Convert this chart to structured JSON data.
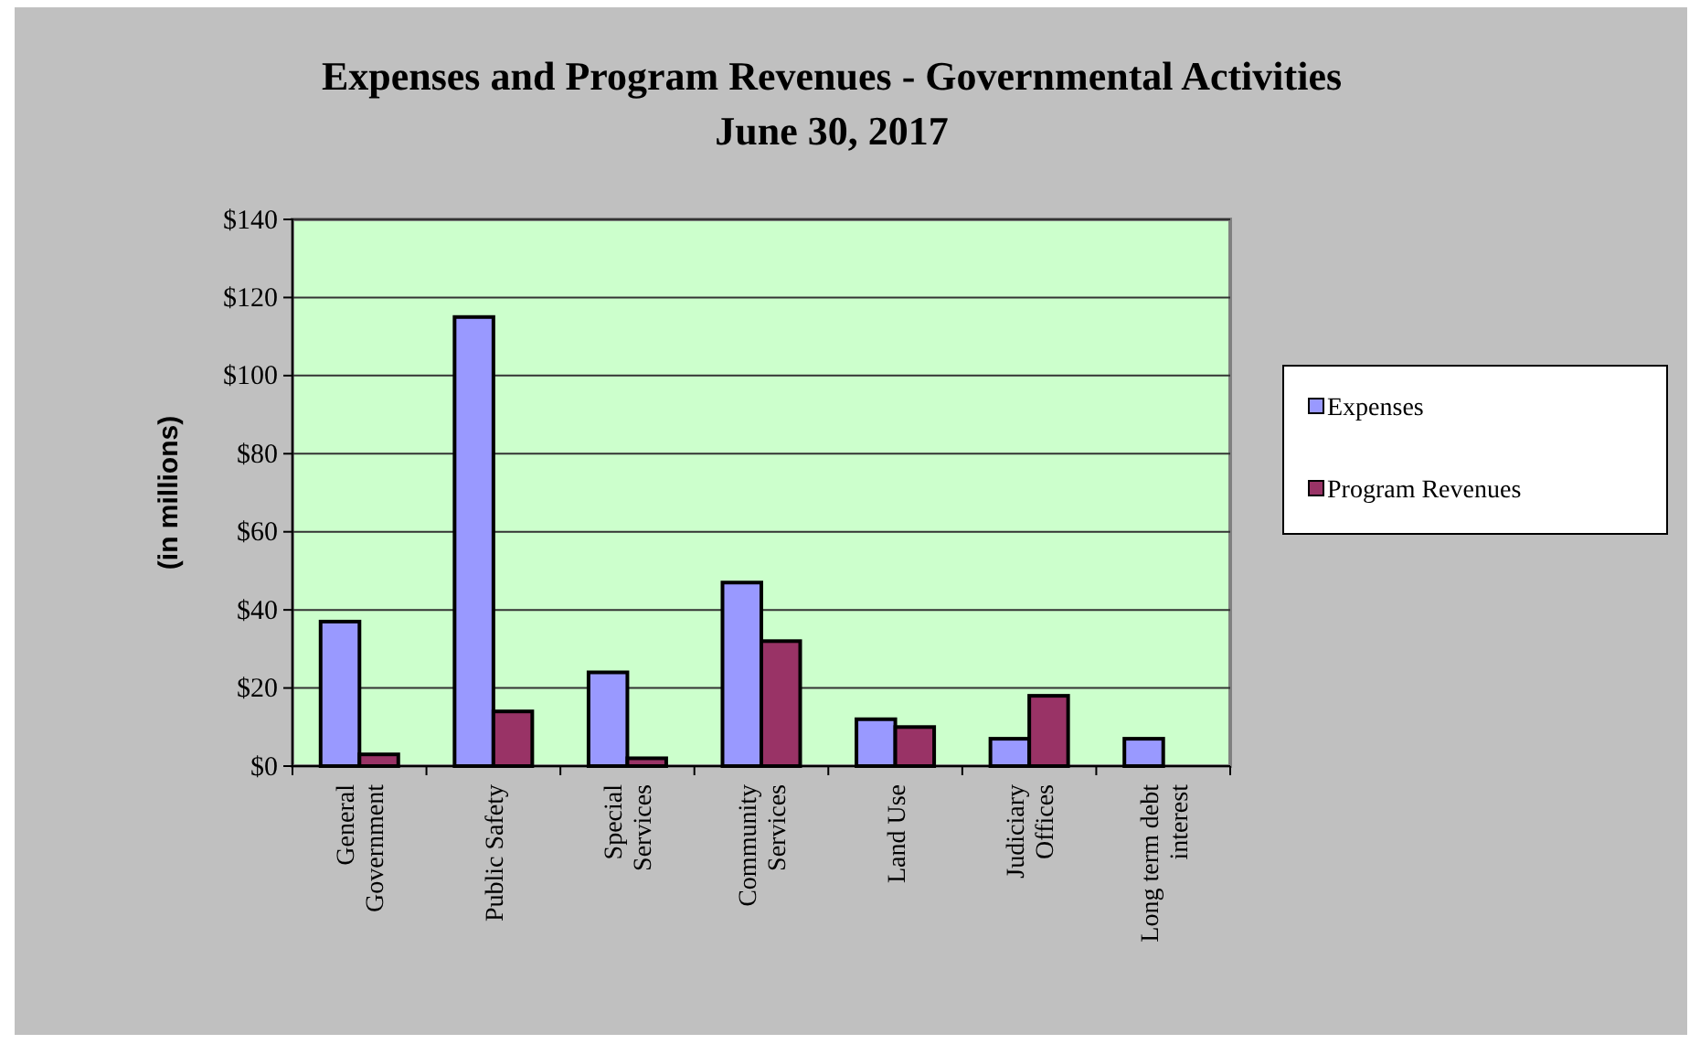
{
  "chart_data": {
    "type": "bar",
    "title": "Expenses and Program Revenues - Governmental Activities\nJune 30, 2017",
    "ylabel": "(in millions)",
    "categories": [
      "General Government",
      "Public Safety",
      "Special Services",
      "Community Services",
      "Land Use",
      "Judiciary Offices",
      "Long term debt interest"
    ],
    "series": [
      {
        "name": "Expenses",
        "color": "#9999ff",
        "values": [
          37,
          115,
          24,
          47,
          12,
          7,
          7
        ]
      },
      {
        "name": "Program Revenues",
        "color": "#993366",
        "values": [
          3,
          14,
          2,
          32,
          10,
          18,
          null
        ]
      }
    ],
    "ylim": [
      0,
      140
    ],
    "yticks": [
      {
        "value": 0,
        "label": "$0"
      },
      {
        "value": 20,
        "label": "$20"
      },
      {
        "value": 40,
        "label": "$40"
      },
      {
        "value": 60,
        "label": "$60"
      },
      {
        "value": 80,
        "label": "$80"
      },
      {
        "value": 100,
        "label": "$100"
      },
      {
        "value": 120,
        "label": "$120"
      },
      {
        "value": 140,
        "label": "$140"
      }
    ],
    "grid": "y",
    "legend": "right"
  }
}
